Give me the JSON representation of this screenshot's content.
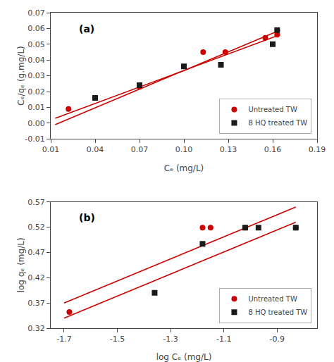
{
  "chart_data": [
    {
      "type": "scatter",
      "x_label": "Cₑ (mg/L)",
      "y_label": "Cₑ/qₑ (g.mg/L)",
      "annotations": [
        {
          "text": "(a)"
        }
      ],
      "series": [
        {
          "type": "line",
          "color": "#cc0000",
          "line_style": "solid",
          "x": [
            0.013,
            0.165
          ],
          "values": [
            0.003,
            0.056
          ]
        },
        {
          "type": "line",
          "color": "#cc0000",
          "line_style": "solid",
          "x": [
            0.013,
            0.165
          ],
          "values": [
            -0.001,
            0.059
          ]
        },
        {
          "name": "Untreated TW",
          "type": "scatter",
          "color": "#cc0000",
          "marker": "circle",
          "x": [
            0.022,
            0.04,
            0.07,
            0.113,
            0.128,
            0.155,
            0.163
          ],
          "values": [
            0.009,
            0.016,
            0.023,
            0.045,
            0.045,
            0.054,
            0.056
          ]
        },
        {
          "name": "8 HQ treated TW",
          "type": "scatter",
          "color": "#1a1a1a",
          "marker": "square",
          "x": [
            0.04,
            0.07,
            0.1,
            0.125,
            0.16,
            0.163
          ],
          "values": [
            0.016,
            0.024,
            0.036,
            0.037,
            0.05,
            0.059
          ]
        }
      ],
      "xlim": [
        0.01,
        0.19
      ],
      "ylim": [
        -0.01,
        0.07
      ],
      "xticks": [
        0.01,
        0.04,
        0.07,
        {
          "value": 0.1,
          "label": "0.10"
        },
        0.13,
        0.16,
        0.19
      ],
      "yticks": [
        -0.01,
        {
          "value": 0,
          "label": "0.00"
        },
        0.01,
        0.02,
        0.03,
        0.04,
        0.05,
        0.06,
        0.07
      ],
      "grid": false,
      "legend": "lower right"
    },
    {
      "type": "scatter",
      "x_label": "log Cₑ (mg/L)",
      "y_label": "log qₑ (mg/L)",
      "annotations": [
        {
          "text": "(b)"
        }
      ],
      "series": [
        {
          "type": "line",
          "color": "#cc0000",
          "line_style": "solid",
          "x": [
            -1.7,
            -0.83
          ],
          "values": [
            0.37,
            0.56
          ]
        },
        {
          "type": "line",
          "color": "#cc0000",
          "line_style": "solid",
          "x": [
            -1.7,
            -0.83
          ],
          "values": [
            0.34,
            0.53
          ]
        },
        {
          "name": "Untreated TW",
          "type": "scatter",
          "color": "#cc0000",
          "marker": "circle",
          "x": [
            -1.68,
            -1.18,
            -1.15,
            -1.02,
            -0.83
          ],
          "values": [
            0.352,
            0.519,
            0.519,
            0.519,
            0.519
          ]
        },
        {
          "name": "8 HQ treated TW",
          "type": "scatter",
          "color": "#1a1a1a",
          "marker": "square",
          "x": [
            -1.36,
            -1.18,
            -1.02,
            -0.97,
            -0.83
          ],
          "values": [
            0.39,
            0.487,
            0.519,
            0.519,
            0.519
          ]
        }
      ],
      "xlim": [
        -1.75,
        -0.75
      ],
      "ylim": [
        0.32,
        0.57
      ],
      "xticks": [
        -1.7,
        -1.5,
        -1.3,
        -1.1,
        -0.9
      ],
      "yticks": [
        0.32,
        0.37,
        0.42,
        0.47,
        0.52,
        0.57
      ],
      "grid": false,
      "legend": "lower right"
    }
  ]
}
